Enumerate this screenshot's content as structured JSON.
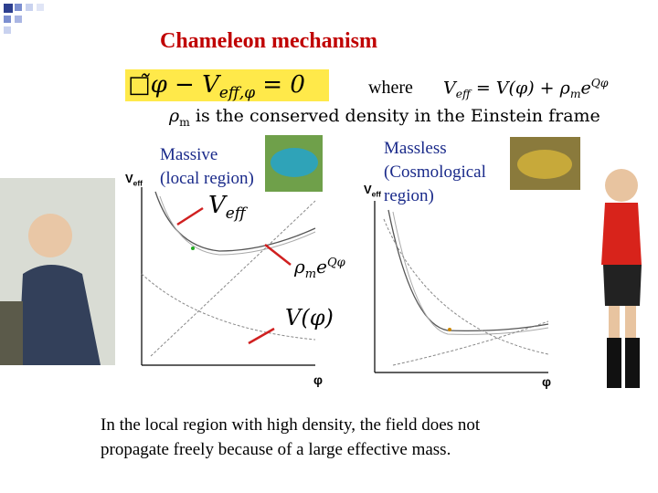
{
  "title": "Chameleon mechanism",
  "equation": {
    "lhs": "□̃φ − V",
    "sub": "eff,φ",
    "rhs": " = 0"
  },
  "where": "where",
  "definition": {
    "v": "V",
    "sub": "eff",
    "mid": " = V(φ) + ρ",
    "sub2": "m",
    "e": "e",
    "sup": "Qφ"
  },
  "density_note": {
    "rho": "ρ",
    "sub": "m",
    "text": " is the conserved density in the Einstein frame"
  },
  "left_panel": {
    "label": [
      "Massive",
      "(local region)"
    ],
    "y_axis": {
      "v": "V",
      "sub": "eff"
    },
    "x_axis": "φ",
    "curve_labels": {
      "veff": {
        "v": "V",
        "sub": "eff"
      },
      "coupling": {
        "rho": "ρ",
        "sub": "m",
        "e": "e",
        "sup": "Qφ"
      },
      "potential": "V(φ)"
    }
  },
  "right_panel": {
    "label": [
      "Massless",
      "(Cosmological",
      " region)"
    ],
    "y_axis": {
      "v": "V",
      "sub": "eff"
    },
    "x_axis": "φ"
  },
  "caption": [
    "In the local region with high density, the field does not",
    "propagate freely because of a large effective mass."
  ]
}
